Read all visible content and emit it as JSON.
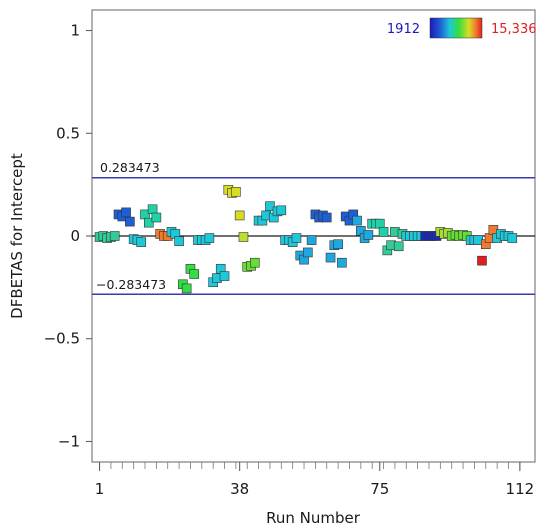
{
  "chart_data": {
    "type": "scatter",
    "title": "",
    "xlabel": "Run Number",
    "ylabel": "DFBETAS for Intercept",
    "xlim": [
      -1,
      116
    ],
    "ylim": [
      -1.1,
      1.1
    ],
    "x_ticks": [
      1,
      38,
      75,
      112
    ],
    "x_tick_labels": [
      "1",
      "38",
      "75",
      "112"
    ],
    "y_ticks": [
      1,
      0.5,
      0,
      -0.5,
      -1
    ],
    "y_tick_labels": [
      "1",
      "0.5",
      "0",
      "−0.5",
      "−1"
    ],
    "reference_lines": [
      {
        "value": 0.283473,
        "label": "0.283473"
      },
      {
        "value": 0,
        "label": ""
      },
      {
        "value": -0.283473,
        "label": "−0.283473"
      }
    ],
    "color_legend": {
      "min_label": "1912",
      "max_label": "15,336",
      "min_color": "#1a1ab4",
      "max_color": "#e02020"
    },
    "colors": {
      "reference_line": "#3a3ab0",
      "zero_line": "#1a1a1a",
      "axis": "#555555"
    },
    "points": [
      {
        "x": 1,
        "y": -0.005,
        "color": "#33cc99"
      },
      {
        "x": 2,
        "y": 0.0,
        "color": "#33cc99"
      },
      {
        "x": 3,
        "y": -0.01,
        "color": "#33cc99"
      },
      {
        "x": 4,
        "y": -0.005,
        "color": "#33cc99"
      },
      {
        "x": 5,
        "y": 0.0,
        "color": "#33cc99"
      },
      {
        "x": 6,
        "y": 0.105,
        "color": "#1f5fd6"
      },
      {
        "x": 7,
        "y": 0.095,
        "color": "#1f5fd6"
      },
      {
        "x": 8,
        "y": 0.115,
        "color": "#1f5fd6"
      },
      {
        "x": 9,
        "y": 0.07,
        "color": "#1f5fd6"
      },
      {
        "x": 10,
        "y": -0.015,
        "color": "#1fc8d8"
      },
      {
        "x": 11,
        "y": -0.02,
        "color": "#1fc8d8"
      },
      {
        "x": 12,
        "y": -0.03,
        "color": "#1fc8d8"
      },
      {
        "x": 13,
        "y": 0.105,
        "color": "#1fd3a8"
      },
      {
        "x": 14,
        "y": 0.065,
        "color": "#1fd3a8"
      },
      {
        "x": 15,
        "y": 0.13,
        "color": "#1fd3a8"
      },
      {
        "x": 16,
        "y": 0.09,
        "color": "#1fd3a8"
      },
      {
        "x": 17,
        "y": 0.01,
        "color": "#f07a30"
      },
      {
        "x": 18,
        "y": 0.0,
        "color": "#f07a30"
      },
      {
        "x": 19,
        "y": 0.0,
        "color": "#f07a30"
      },
      {
        "x": 20,
        "y": 0.02,
        "color": "#1fc8d8"
      },
      {
        "x": 21,
        "y": 0.01,
        "color": "#1fc8d8"
      },
      {
        "x": 22,
        "y": -0.025,
        "color": "#1fc8d8"
      },
      {
        "x": 23,
        "y": -0.235,
        "color": "#33dd44"
      },
      {
        "x": 24,
        "y": -0.255,
        "color": "#33dd44"
      },
      {
        "x": 25,
        "y": -0.16,
        "color": "#33dd44"
      },
      {
        "x": 26,
        "y": -0.185,
        "color": "#33dd44"
      },
      {
        "x": 27,
        "y": -0.02,
        "color": "#1fc8d8"
      },
      {
        "x": 28,
        "y": -0.02,
        "color": "#1fc8d8"
      },
      {
        "x": 29,
        "y": -0.02,
        "color": "#1fc8d8"
      },
      {
        "x": 30,
        "y": -0.01,
        "color": "#1fc8d8"
      },
      {
        "x": 31,
        "y": -0.225,
        "color": "#1fc8d8"
      },
      {
        "x": 32,
        "y": -0.205,
        "color": "#1fc8d8"
      },
      {
        "x": 33,
        "y": -0.16,
        "color": "#1fc8d8"
      },
      {
        "x": 34,
        "y": -0.195,
        "color": "#1fc8d8"
      },
      {
        "x": 35,
        "y": 0.225,
        "color": "#d8dd22"
      },
      {
        "x": 36,
        "y": 0.21,
        "color": "#d8dd22"
      },
      {
        "x": 37,
        "y": 0.215,
        "color": "#d8dd22"
      },
      {
        "x": 38,
        "y": 0.1,
        "color": "#d8dd22"
      },
      {
        "x": 39,
        "y": -0.005,
        "color": "#b8e030"
      },
      {
        "x": 40,
        "y": -0.15,
        "color": "#66dd33"
      },
      {
        "x": 41,
        "y": -0.145,
        "color": "#66dd33"
      },
      {
        "x": 42,
        "y": -0.13,
        "color": "#66dd33"
      },
      {
        "x": 43,
        "y": 0.075,
        "color": "#1fc8d8"
      },
      {
        "x": 44,
        "y": 0.075,
        "color": "#1fc8d8"
      },
      {
        "x": 45,
        "y": 0.1,
        "color": "#1fc8d8"
      },
      {
        "x": 46,
        "y": 0.145,
        "color": "#1fc8d8"
      },
      {
        "x": 47,
        "y": 0.09,
        "color": "#1fc8d8"
      },
      {
        "x": 48,
        "y": 0.12,
        "color": "#1fc8d8"
      },
      {
        "x": 49,
        "y": 0.125,
        "color": "#1fc8d8"
      },
      {
        "x": 50,
        "y": -0.02,
        "color": "#1fc8d8"
      },
      {
        "x": 51,
        "y": -0.02,
        "color": "#1fc8d8"
      },
      {
        "x": 52,
        "y": -0.03,
        "color": "#1fc8d8"
      },
      {
        "x": 53,
        "y": -0.01,
        "color": "#1fc8d8"
      },
      {
        "x": 54,
        "y": -0.095,
        "color": "#1fa8e0"
      },
      {
        "x": 55,
        "y": -0.115,
        "color": "#1fa8e0"
      },
      {
        "x": 56,
        "y": -0.08,
        "color": "#1fa8e0"
      },
      {
        "x": 57,
        "y": -0.02,
        "color": "#1fa8e0"
      },
      {
        "x": 58,
        "y": 0.105,
        "color": "#1f5fd6"
      },
      {
        "x": 59,
        "y": 0.09,
        "color": "#1f5fd6"
      },
      {
        "x": 60,
        "y": 0.1,
        "color": "#1f5fd6"
      },
      {
        "x": 61,
        "y": 0.09,
        "color": "#1f5fd6"
      },
      {
        "x": 62,
        "y": -0.105,
        "color": "#1fa8e0"
      },
      {
        "x": 63,
        "y": -0.045,
        "color": "#1fa8e0"
      },
      {
        "x": 64,
        "y": -0.04,
        "color": "#1fa8e0"
      },
      {
        "x": 65,
        "y": -0.13,
        "color": "#1fa8e0"
      },
      {
        "x": 66,
        "y": 0.095,
        "color": "#1f5fd6"
      },
      {
        "x": 67,
        "y": 0.075,
        "color": "#1f5fd6"
      },
      {
        "x": 68,
        "y": 0.105,
        "color": "#1f5fd6"
      },
      {
        "x": 69,
        "y": 0.075,
        "color": "#1fa8e0"
      },
      {
        "x": 70,
        "y": 0.025,
        "color": "#1fa8e0"
      },
      {
        "x": 71,
        "y": -0.01,
        "color": "#1fa8e0"
      },
      {
        "x": 72,
        "y": 0.005,
        "color": "#1fa8e0"
      },
      {
        "x": 73,
        "y": 0.06,
        "color": "#1fd3a8"
      },
      {
        "x": 74,
        "y": 0.06,
        "color": "#1fd3a8"
      },
      {
        "x": 75,
        "y": 0.06,
        "color": "#1fd3a8"
      },
      {
        "x": 76,
        "y": 0.02,
        "color": "#1fd3a8"
      },
      {
        "x": 77,
        "y": -0.07,
        "color": "#33cc99"
      },
      {
        "x": 78,
        "y": -0.045,
        "color": "#33cc99"
      },
      {
        "x": 79,
        "y": 0.02,
        "color": "#33cc99"
      },
      {
        "x": 80,
        "y": -0.05,
        "color": "#33cc99"
      },
      {
        "x": 81,
        "y": 0.01,
        "color": "#33cc99"
      },
      {
        "x": 82,
        "y": 0.0,
        "color": "#1fc8d8"
      },
      {
        "x": 83,
        "y": 0.0,
        "color": "#1fc8d8"
      },
      {
        "x": 84,
        "y": 0.0,
        "color": "#1fc8d8"
      },
      {
        "x": 85,
        "y": 0.0,
        "color": "#1fc8d8"
      },
      {
        "x": 86,
        "y": 0.0,
        "color": "#1fc8d8"
      },
      {
        "x": 87,
        "y": 0.0,
        "color": "#1a2ab4"
      },
      {
        "x": 88,
        "y": 0.0,
        "color": "#1a2ab4"
      },
      {
        "x": 89,
        "y": 0.0,
        "color": "#1a2ab4"
      },
      {
        "x": 90,
        "y": 0.0,
        "color": "#1a2ab4"
      },
      {
        "x": 91,
        "y": 0.02,
        "color": "#a8dd33"
      },
      {
        "x": 92,
        "y": 0.01,
        "color": "#a8dd33"
      },
      {
        "x": 93,
        "y": 0.015,
        "color": "#a8dd33"
      },
      {
        "x": 94,
        "y": 0.0,
        "color": "#66dd33"
      },
      {
        "x": 95,
        "y": 0.005,
        "color": "#66dd33"
      },
      {
        "x": 96,
        "y": 0.0,
        "color": "#66dd33"
      },
      {
        "x": 97,
        "y": 0.005,
        "color": "#66dd33"
      },
      {
        "x": 98,
        "y": 0.0,
        "color": "#66dd33"
      },
      {
        "x": 99,
        "y": -0.02,
        "color": "#1fc8d8"
      },
      {
        "x": 100,
        "y": -0.02,
        "color": "#1fc8d8"
      },
      {
        "x": 101,
        "y": -0.02,
        "color": "#1fc8d8"
      },
      {
        "x": 102,
        "y": -0.12,
        "color": "#e02020"
      },
      {
        "x": 103,
        "y": -0.04,
        "color": "#f07a30"
      },
      {
        "x": 104,
        "y": -0.01,
        "color": "#f07a30"
      },
      {
        "x": 105,
        "y": 0.03,
        "color": "#f07a30"
      },
      {
        "x": 106,
        "y": -0.01,
        "color": "#1fc8d8"
      },
      {
        "x": 107,
        "y": 0.01,
        "color": "#1fc8d8"
      },
      {
        "x": 108,
        "y": 0.0,
        "color": "#1fc8d8"
      },
      {
        "x": 109,
        "y": 0.0,
        "color": "#1fc8d8"
      },
      {
        "x": 110,
        "y": -0.01,
        "color": "#1fc8d8"
      }
    ]
  }
}
